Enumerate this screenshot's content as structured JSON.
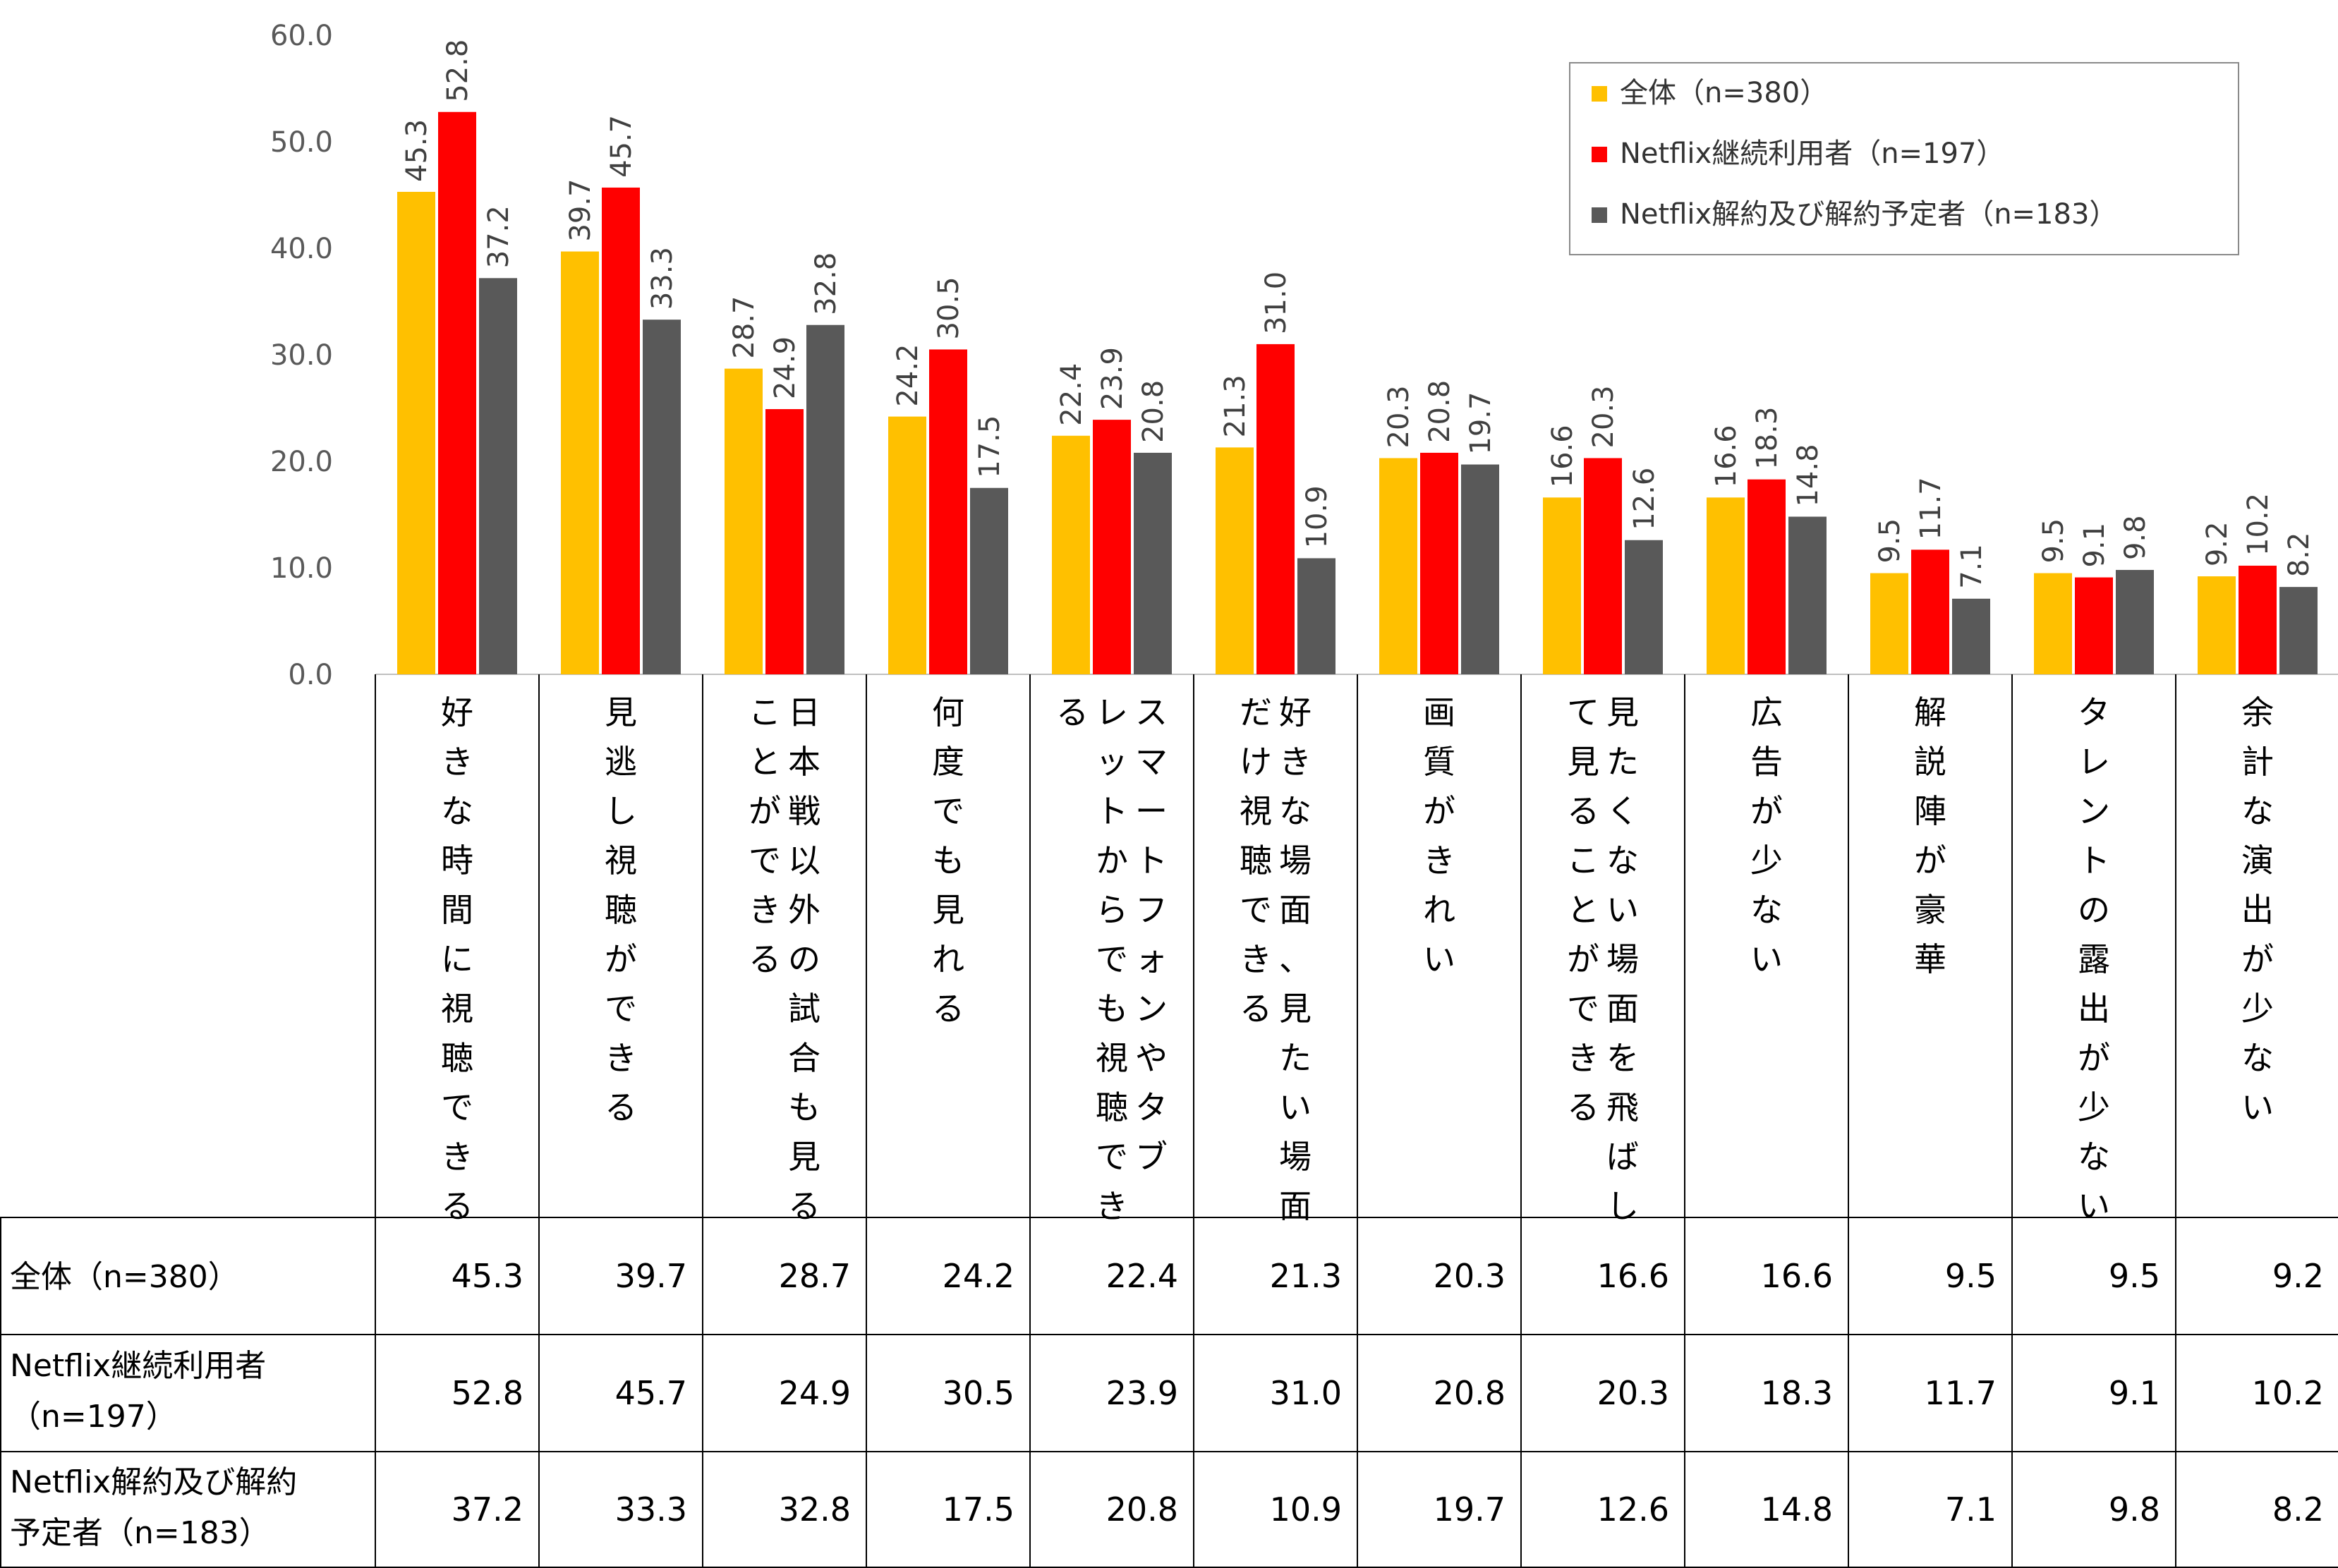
{
  "chart_data": {
    "type": "bar",
    "ylim": [
      0,
      60
    ],
    "yticks": [
      "0.0",
      "10.0",
      "20.0",
      "30.0",
      "40.0",
      "50.0",
      "60.0"
    ],
    "categories": [
      "好きな時間に視聴できる",
      "見逃し視聴ができる",
      "日本戦以外の試合も見ることができる",
      "何度でも見れる",
      "スマートフォンやタブレットからでも視聴できる",
      "好きな場面、見たい場面だけ視聴できる",
      "画質がきれい",
      "見たくない場面を飛ばして見ることができる",
      "広告が少ない",
      "解説陣が豪華",
      "タレントの露出が少ない",
      "余計な演出が少ない"
    ],
    "category_lines": [
      [
        "好きな時間に視聴できる"
      ],
      [
        "見逃し視聴ができる"
      ],
      [
        "日本戦以外の試合も見る",
        "ことができる"
      ],
      [
        "何度でも見れる"
      ],
      [
        "スマートフォンやタブ",
        "レットからでも視聴でき",
        "る"
      ],
      [
        "好きな場面、見たい場面",
        "だけ視聴できる"
      ],
      [
        "画質がきれい"
      ],
      [
        "見たくない場面を飛ばし",
        "て見ることができる"
      ],
      [
        "広告が少ない"
      ],
      [
        "解説陣が豪華"
      ],
      [
        "タレントの露出が少ない"
      ],
      [
        "余計な演出が少ない"
      ]
    ],
    "series": [
      {
        "name": "全体（n=380）",
        "table_label": [
          "全体（n=380）"
        ],
        "color": "#FFC000",
        "values": [
          45.3,
          39.7,
          28.7,
          24.2,
          22.4,
          21.3,
          20.3,
          16.6,
          16.6,
          9.5,
          9.5,
          9.2
        ],
        "labels": [
          "45.3",
          "39.7",
          "28.7",
          "24.2",
          "22.4",
          "21.3",
          "20.3",
          "16.6",
          "16.6",
          "9.5",
          "9.5",
          "9.2"
        ]
      },
      {
        "name": "Netflix継続利用者（n=197）",
        "table_label": [
          "Netflix継続利用者",
          "（n=197）"
        ],
        "color": "#FF0000",
        "values": [
          52.8,
          45.7,
          24.9,
          30.5,
          23.9,
          31.0,
          20.8,
          20.3,
          18.3,
          11.7,
          9.1,
          10.2
        ],
        "labels": [
          "52.8",
          "45.7",
          "24.9",
          "30.5",
          "23.9",
          "31.0",
          "20.8",
          "20.3",
          "18.3",
          "11.7",
          "9.1",
          "10.2"
        ]
      },
      {
        "name": "Netflix解約及び解約予定者（n=183）",
        "table_label": [
          "Netflix解約及び解約",
          "予定者（n=183）"
        ],
        "color": "#595959",
        "values": [
          37.2,
          33.3,
          32.8,
          17.5,
          20.8,
          10.9,
          19.7,
          12.6,
          14.8,
          7.1,
          9.8,
          8.2
        ],
        "labels": [
          "37.2",
          "33.3",
          "32.8",
          "17.5",
          "20.8",
          "10.9",
          "19.7",
          "12.6",
          "14.8",
          "7.1",
          "9.8",
          "8.2"
        ]
      }
    ],
    "legend_position": "top-right"
  }
}
